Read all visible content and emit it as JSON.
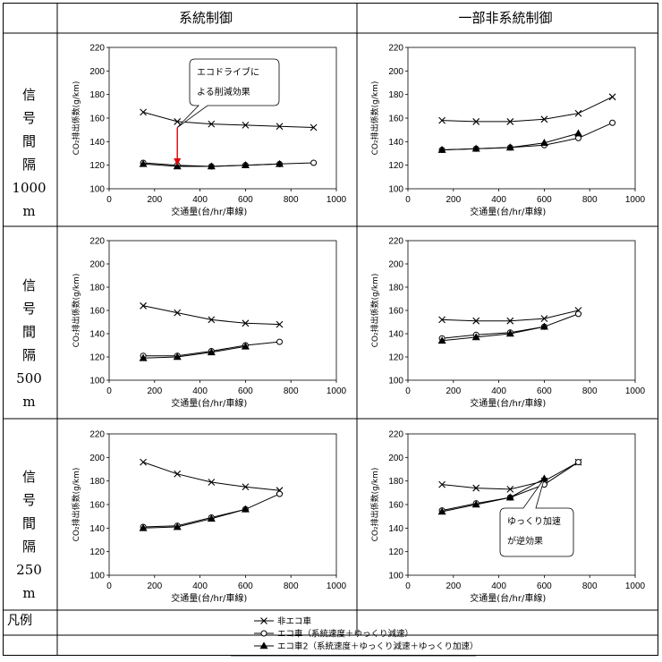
{
  "header": {
    "col1": "系統制御",
    "col2": "一部非系統制御"
  },
  "rows": [
    {
      "chars": [
        "信",
        "号",
        "間",
        "隔",
        "1000",
        "m"
      ]
    },
    {
      "chars": [
        "信",
        "号",
        "間",
        "隔",
        "500",
        "m"
      ]
    },
    {
      "chars": [
        "信",
        "号",
        "間",
        "隔",
        "250",
        "m"
      ]
    }
  ],
  "legend_label": "凡例",
  "legend": [
    {
      "label": "非エコ車",
      "marker": "x"
    },
    {
      "label": "エコ車（系統速度＋ゆっくり減速）",
      "marker": "circle"
    },
    {
      "label": "エコ車2（系統速度＋ゆっくり減速＋ゆっくり加速）",
      "marker": "triangle"
    }
  ],
  "colors": {
    "arrow": "#e00000",
    "line": "#000000",
    "border": "#000000"
  },
  "chart_data": [
    {
      "type": "line",
      "id": "c1000_sys",
      "xlabel": "交通量(台/hr/車線)",
      "ylabel": "CO₂排出係数(g/km)",
      "xlim": [
        0,
        1000
      ],
      "ylim": [
        100,
        220
      ],
      "xticks": [
        0,
        200,
        400,
        600,
        800,
        1000
      ],
      "yticks": [
        100,
        120,
        140,
        160,
        180,
        200,
        220
      ],
      "series": [
        {
          "name": "非エコ車",
          "marker": "x",
          "x": [
            150,
            300,
            450,
            600,
            750,
            900
          ],
          "y": [
            165,
            157,
            155,
            154,
            153,
            152
          ]
        },
        {
          "name": "エコ車（系統速度＋ゆっくり減速）",
          "marker": "circle",
          "x": [
            150,
            300,
            450,
            600,
            750,
            900
          ],
          "y": [
            122,
            120,
            119,
            120,
            121,
            122
          ]
        },
        {
          "name": "エコ車2（系統速度＋ゆっくり減速＋ゆっくり加速）",
          "marker": "triangle",
          "x": [
            150,
            300,
            450,
            600,
            750
          ],
          "y": [
            121,
            119,
            119,
            120,
            121
          ]
        }
      ],
      "annotation": {
        "lines": [
          "エコドライブに",
          "よる削減効果"
        ],
        "arrow_x": 300,
        "arrow_from": 152,
        "arrow_to": 119
      }
    },
    {
      "type": "line",
      "id": "c1000_part",
      "xlabel": "交通量(台/hr/車線)",
      "ylabel": "CO₂排出係数(g/km)",
      "xlim": [
        0,
        1000
      ],
      "ylim": [
        100,
        220
      ],
      "xticks": [
        0,
        200,
        400,
        600,
        800,
        1000
      ],
      "yticks": [
        100,
        120,
        140,
        160,
        180,
        200,
        220
      ],
      "series": [
        {
          "name": "非エコ車",
          "marker": "x",
          "x": [
            150,
            300,
            450,
            600,
            750,
            900
          ],
          "y": [
            158,
            157,
            157,
            159,
            164,
            178
          ]
        },
        {
          "name": "エコ車（系統速度＋ゆっくり減速）",
          "marker": "circle",
          "x": [
            150,
            300,
            450,
            600,
            750,
            900
          ],
          "y": [
            133,
            134,
            135,
            137,
            143,
            156
          ]
        },
        {
          "name": "エコ車2（系統速度＋ゆっくり減速＋ゆっくり加速）",
          "marker": "triangle",
          "x": [
            150,
            300,
            450,
            600,
            750
          ],
          "y": [
            133,
            134,
            135,
            139,
            147
          ]
        }
      ]
    },
    {
      "type": "line",
      "id": "c500_sys",
      "xlabel": "交通量(台/hr/車線)",
      "ylabel": "CO₂排出係数(g/km)",
      "xlim": [
        0,
        1000
      ],
      "ylim": [
        100,
        220
      ],
      "xticks": [
        0,
        200,
        400,
        600,
        800,
        1000
      ],
      "yticks": [
        100,
        120,
        140,
        160,
        180,
        200,
        220
      ],
      "series": [
        {
          "name": "非エコ車",
          "marker": "x",
          "x": [
            150,
            300,
            450,
            600,
            750
          ],
          "y": [
            164,
            158,
            152,
            149,
            148
          ]
        },
        {
          "name": "エコ車（系統速度＋ゆっくり減速）",
          "marker": "circle",
          "x": [
            150,
            300,
            450,
            600,
            750
          ],
          "y": [
            121,
            121,
            125,
            130,
            133
          ]
        },
        {
          "name": "エコ車2（系統速度＋ゆっくり減速＋ゆっくり加速）",
          "marker": "triangle",
          "x": [
            150,
            300,
            450,
            600
          ],
          "y": [
            119,
            120,
            124,
            129
          ]
        }
      ]
    },
    {
      "type": "line",
      "id": "c500_part",
      "xlabel": "交通量(台/hr/車線)",
      "ylabel": "CO₂排出係数(g/km)",
      "xlim": [
        0,
        1000
      ],
      "ylim": [
        100,
        220
      ],
      "xticks": [
        0,
        200,
        400,
        600,
        800,
        1000
      ],
      "yticks": [
        100,
        120,
        140,
        160,
        180,
        200,
        220
      ],
      "series": [
        {
          "name": "非エコ車",
          "marker": "x",
          "x": [
            150,
            300,
            450,
            600,
            750
          ],
          "y": [
            152,
            151,
            151,
            153,
            160
          ]
        },
        {
          "name": "エコ車（系統速度＋ゆっくり減速）",
          "marker": "circle",
          "x": [
            150,
            300,
            450,
            600,
            750
          ],
          "y": [
            136,
            139,
            141,
            146,
            157
          ]
        },
        {
          "name": "エコ車2（系統速度＋ゆっくり減速＋ゆっくり加速）",
          "marker": "triangle",
          "x": [
            150,
            300,
            450,
            600
          ],
          "y": [
            134,
            137,
            140,
            146
          ]
        }
      ]
    },
    {
      "type": "line",
      "id": "c250_sys",
      "xlabel": "交通量(台/hr/車線)",
      "ylabel": "CO₂排出係数(g/km)",
      "xlim": [
        0,
        1000
      ],
      "ylim": [
        100,
        220
      ],
      "xticks": [
        0,
        200,
        400,
        600,
        800,
        1000
      ],
      "yticks": [
        100,
        120,
        140,
        160,
        180,
        200,
        220
      ],
      "series": [
        {
          "name": "非エコ車",
          "marker": "x",
          "x": [
            150,
            300,
            450,
            600,
            750
          ],
          "y": [
            196,
            186,
            179,
            175,
            172
          ]
        },
        {
          "name": "エコ車（系統速度＋ゆっくり減速）",
          "marker": "circle",
          "x": [
            150,
            300,
            450,
            600,
            750
          ],
          "y": [
            141,
            142,
            149,
            156,
            169
          ]
        },
        {
          "name": "エコ車2（系統速度＋ゆっくり減速＋ゆっくり加速）",
          "marker": "triangle",
          "x": [
            150,
            300,
            450,
            600
          ],
          "y": [
            140,
            141,
            148,
            156
          ]
        }
      ]
    },
    {
      "type": "line",
      "id": "c250_part",
      "xlabel": "交通量(台/hr/車線)",
      "ylabel": "CO₂排出係数(g/km)",
      "xlim": [
        0,
        1000
      ],
      "ylim": [
        100,
        220
      ],
      "xticks": [
        0,
        200,
        400,
        600,
        800,
        1000
      ],
      "yticks": [
        100,
        120,
        140,
        160,
        180,
        200,
        220
      ],
      "series": [
        {
          "name": "非エコ車",
          "marker": "x",
          "x": [
            150,
            300,
            450,
            600,
            750
          ],
          "y": [
            177,
            174,
            173,
            180,
            196
          ]
        },
        {
          "name": "エコ車（系統速度＋ゆっくり減速）",
          "marker": "circle",
          "x": [
            150,
            300,
            450,
            600,
            750
          ],
          "y": [
            155,
            161,
            166,
            177,
            196
          ]
        },
        {
          "name": "エコ車2（系統速度＋ゆっくり減速＋ゆっくり加速）",
          "marker": "triangle",
          "x": [
            150,
            300,
            450,
            600
          ],
          "y": [
            154,
            160,
            166,
            182
          ]
        }
      ],
      "annotation": {
        "lines": [
          "ゆっくり加速",
          "が逆効果"
        ],
        "target_x": 600,
        "target_y": 182
      }
    }
  ]
}
